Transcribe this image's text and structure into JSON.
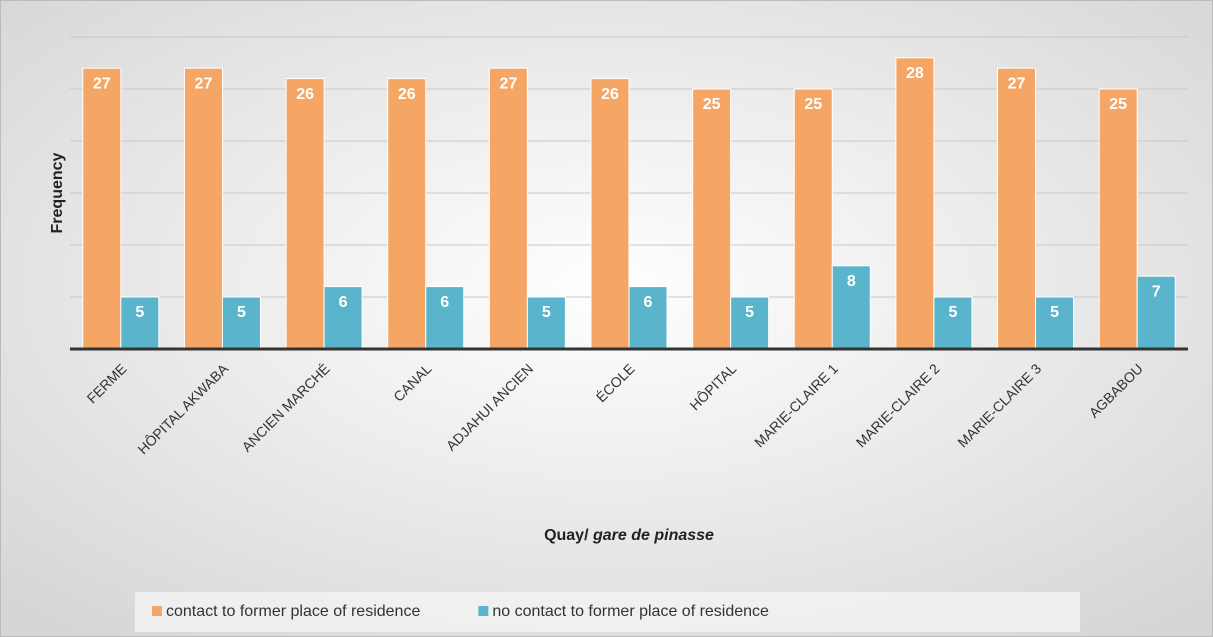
{
  "chart_data": {
    "type": "bar",
    "ylabel": "Frequency",
    "xlabel": [
      "Quay/",
      "gare de pinasse"
    ],
    "categories": [
      "FERME",
      "HÔPITAL AKWABA",
      "ANCIEN MARCHÉ",
      "CANAL",
      "ADJAHUI ANCIEN",
      "ÉCOLE",
      "HÔPITAL",
      "MARIE-CLAIRE 1",
      "MARIE-CLAIRE 2",
      "MARIE-CLAIRE 3",
      "AGBABOU"
    ],
    "series": [
      {
        "name": "contact to former place of residence",
        "color": "#f5a665",
        "values": [
          27,
          27,
          26,
          26,
          27,
          26,
          25,
          25,
          28,
          27,
          25
        ]
      },
      {
        "name": "no contact to former place of residence",
        "color": "#5ab5cc",
        "values": [
          5,
          5,
          6,
          6,
          5,
          6,
          5,
          8,
          5,
          5,
          7
        ]
      }
    ],
    "ylim": [
      0,
      30
    ],
    "yticks": [
      0,
      5,
      10,
      15,
      20,
      25,
      30
    ],
    "grid": true,
    "legend": "bottom"
  }
}
